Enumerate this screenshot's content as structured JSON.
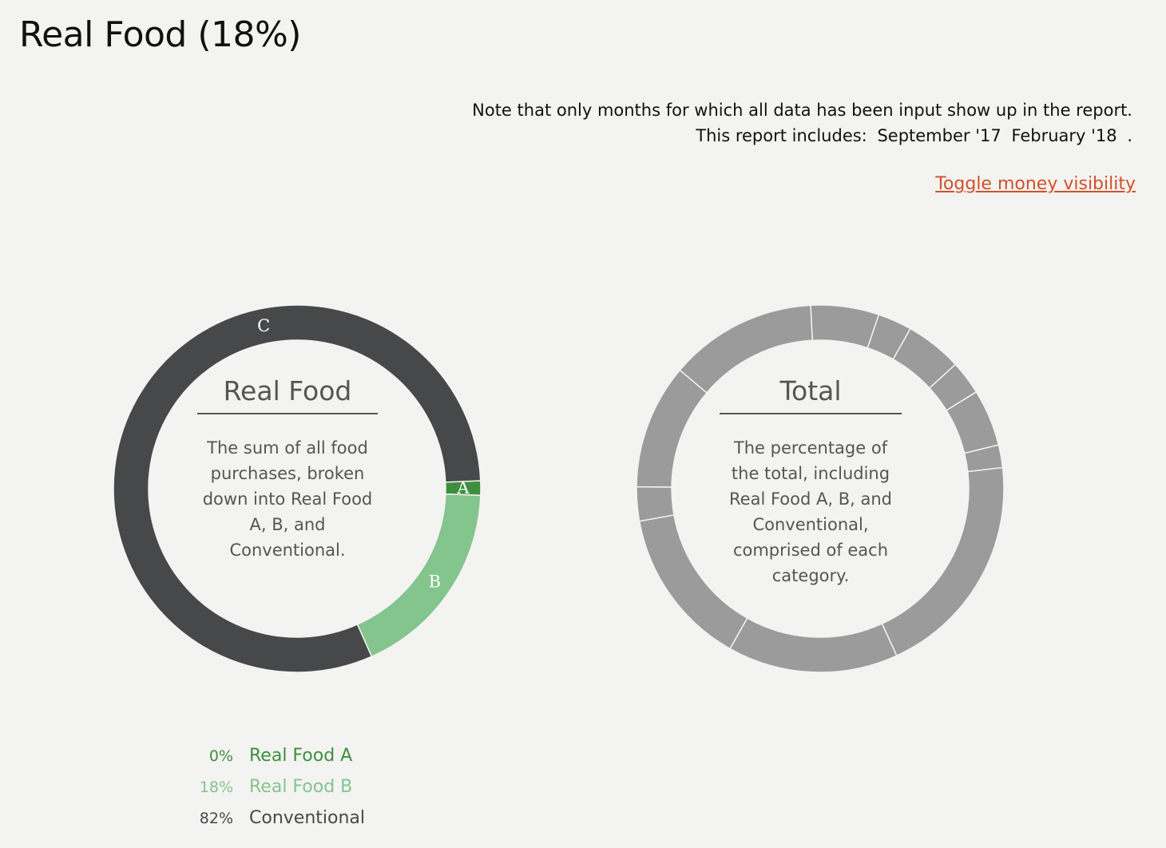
{
  "page": {
    "title": "Real Food (18%)",
    "note_line1": "Note that only months for which all data has been input show up in the report.",
    "note_line2_prefix": "This report includes:",
    "months": [
      "September '17",
      "February '18"
    ],
    "note_line2_suffix": ".",
    "toggle_link": "Toggle money visibility",
    "accent_color": "#d0502a"
  },
  "chart_data": [
    {
      "type": "pie",
      "style": "donut",
      "title": "Real Food",
      "description": "The sum of all food purchases, broken down into Real Food A, B, and Conventional.",
      "segments": [
        {
          "label": "A",
          "name": "Real Food A",
          "value": 0,
          "value_text": "0%",
          "color": "#3d8f3d"
        },
        {
          "label": "B",
          "name": "Real Food B",
          "value": 18,
          "value_text": "18%",
          "color": "#84c48d"
        },
        {
          "label": "C",
          "name": "Conventional",
          "value": 82,
          "value_text": "82%",
          "color": "#474849"
        }
      ],
      "legend_position": "below"
    },
    {
      "type": "pie",
      "style": "donut",
      "title": "Total",
      "description": "The percentage of the total, including Real Food A, B, and Conventional, comprised of each category.",
      "segment_color": "#9b9b9b",
      "values": [
        6,
        3,
        5,
        3,
        5,
        2,
        20,
        15,
        14,
        3,
        11,
        13
      ]
    }
  ]
}
